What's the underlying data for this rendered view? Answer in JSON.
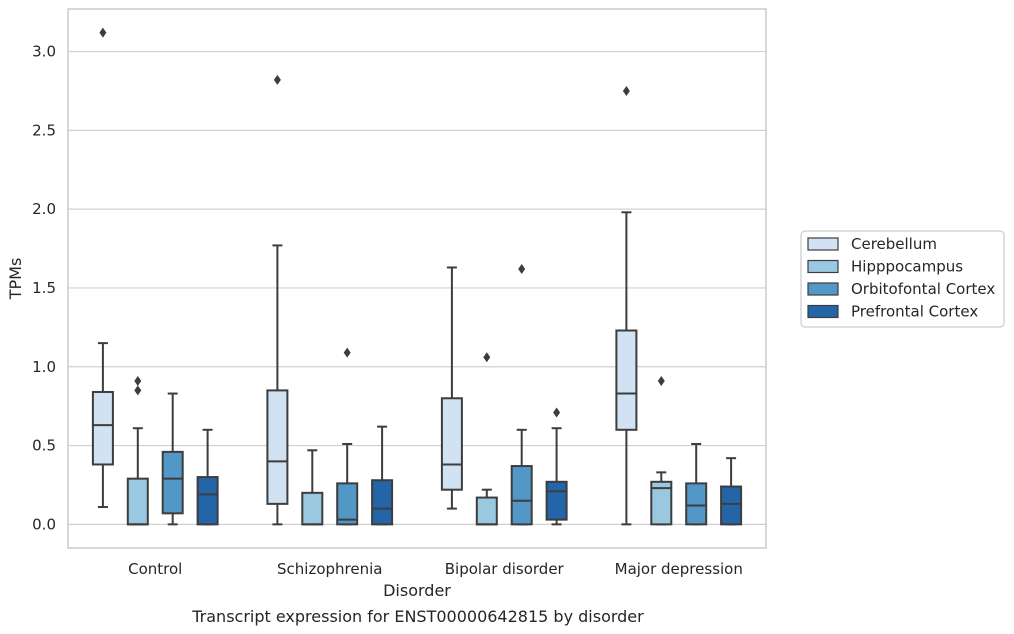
{
  "chart_data": {
    "type": "box",
    "title": "",
    "caption": "Transcript expression for ENST00000642815 by disorder",
    "xlabel": "Disorder",
    "ylabel": "TPMs",
    "ylim": [
      -0.15,
      3.27
    ],
    "yticks": [
      0.0,
      0.5,
      1.0,
      1.5,
      2.0,
      2.5,
      3.0
    ],
    "ytick_labels": [
      "0.0",
      "0.5",
      "1.0",
      "1.5",
      "2.0",
      "2.5",
      "3.0"
    ],
    "grid": "horizontal",
    "legend_placement": "right",
    "categories": [
      "Control",
      "Schizophrenia",
      "Bipolar disorder",
      "Major depression"
    ],
    "series": [
      {
        "name": "Cerebellum",
        "color": "#d1e2f2",
        "boxes": [
          {
            "whisker_low": 0.11,
            "q1": 0.38,
            "median": 0.63,
            "q3": 0.84,
            "whisker_high": 1.15,
            "outliers": [
              3.12
            ]
          },
          {
            "whisker_low": 0.0,
            "q1": 0.13,
            "median": 0.4,
            "q3": 0.85,
            "whisker_high": 1.77,
            "outliers": [
              2.82
            ]
          },
          {
            "whisker_low": 0.1,
            "q1": 0.22,
            "median": 0.38,
            "q3": 0.8,
            "whisker_high": 1.63,
            "outliers": []
          },
          {
            "whisker_low": 0.0,
            "q1": 0.6,
            "median": 0.83,
            "q3": 1.23,
            "whisker_high": 1.98,
            "outliers": [
              2.75
            ]
          }
        ]
      },
      {
        "name": "Hipppocampus",
        "color": "#9ac8e0",
        "boxes": [
          {
            "whisker_low": 0.0,
            "q1": 0.0,
            "median": 0.0,
            "q3": 0.29,
            "whisker_high": 0.61,
            "outliers": [
              0.85,
              0.91
            ]
          },
          {
            "whisker_low": 0.0,
            "q1": 0.0,
            "median": 0.0,
            "q3": 0.2,
            "whisker_high": 0.47,
            "outliers": []
          },
          {
            "whisker_low": 0.0,
            "q1": 0.0,
            "median": 0.0,
            "q3": 0.17,
            "whisker_high": 0.22,
            "outliers": [
              1.06
            ]
          },
          {
            "whisker_low": 0.0,
            "q1": 0.0,
            "median": 0.23,
            "q3": 0.27,
            "whisker_high": 0.33,
            "outliers": [
              0.91
            ]
          }
        ]
      },
      {
        "name": "Orbitofontal Cortex",
        "color": "#5297c6",
        "boxes": [
          {
            "whisker_low": 0.0,
            "q1": 0.07,
            "median": 0.29,
            "q3": 0.46,
            "whisker_high": 0.83,
            "outliers": []
          },
          {
            "whisker_low": 0.0,
            "q1": 0.0,
            "median": 0.03,
            "q3": 0.26,
            "whisker_high": 0.51,
            "outliers": [
              1.09
            ]
          },
          {
            "whisker_low": 0.0,
            "q1": 0.0,
            "median": 0.15,
            "q3": 0.37,
            "whisker_high": 0.6,
            "outliers": [
              1.62
            ]
          },
          {
            "whisker_low": 0.0,
            "q1": 0.0,
            "median": 0.12,
            "q3": 0.26,
            "whisker_high": 0.51,
            "outliers": []
          }
        ]
      },
      {
        "name": "Prefrontal Cortex",
        "color": "#2465a8",
        "boxes": [
          {
            "whisker_low": 0.0,
            "q1": 0.0,
            "median": 0.19,
            "q3": 0.3,
            "whisker_high": 0.6,
            "outliers": []
          },
          {
            "whisker_low": 0.0,
            "q1": 0.0,
            "median": 0.1,
            "q3": 0.28,
            "whisker_high": 0.62,
            "outliers": []
          },
          {
            "whisker_low": 0.0,
            "q1": 0.03,
            "median": 0.21,
            "q3": 0.27,
            "whisker_high": 0.61,
            "outliers": [
              0.71
            ]
          },
          {
            "whisker_low": 0.0,
            "q1": 0.0,
            "median": 0.13,
            "q3": 0.24,
            "whisker_high": 0.42,
            "outliers": []
          }
        ]
      }
    ]
  }
}
